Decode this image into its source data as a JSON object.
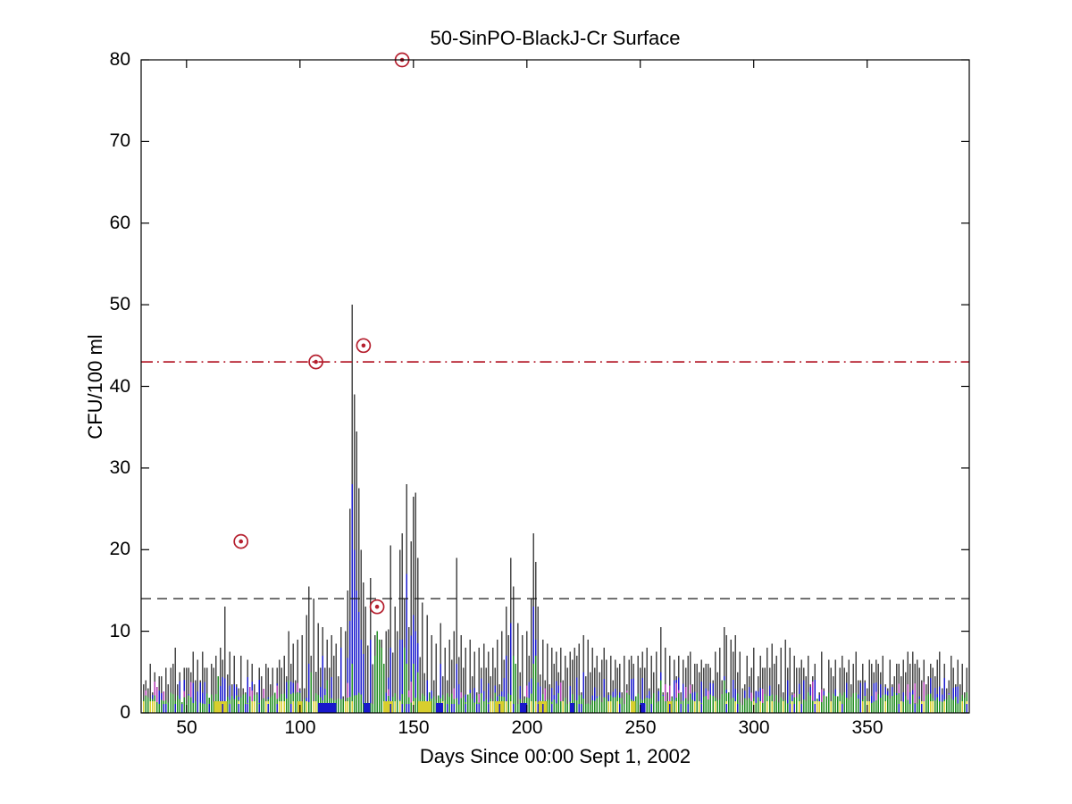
{
  "figure": {
    "title": "50-SinPO-BlackJ-Cr Surface",
    "xlabel": "Days Since 00:00 Sept 1, 2002",
    "ylabel": "CFU/100 ml"
  },
  "chart_data": {
    "type": "bar",
    "title": "50-SinPO-BlackJ-Cr Surface",
    "xlabel": "Days Since 00:00 Sept 1, 2002",
    "ylabel": "CFU/100 ml",
    "xlim": [
      30,
      395
    ],
    "ylim": [
      0,
      80
    ],
    "xticks": [
      50,
      100,
      150,
      200,
      250,
      300,
      350
    ],
    "yticks": [
      0,
      10,
      20,
      30,
      40,
      50,
      60,
      70,
      80
    ],
    "grid": false,
    "legend": "none",
    "bar_width_days": 1,
    "colors": {
      "total_bar": "#474747",
      "blue_bar": "#1818cc",
      "green_bar": "#1f8c1f",
      "yellow_bar": "#d8ce2e",
      "magenta_bar": "#b438b4",
      "outlier": "#b51f2e",
      "threshold_upper": "#b51f2e",
      "threshold_lower": "#1a1a1a",
      "axis": "#000000"
    },
    "thresholds": [
      {
        "name": "upper-limit",
        "value": 43,
        "style": "dash-dot",
        "color": "#b51f2e"
      },
      {
        "name": "lower-limit",
        "value": 14,
        "style": "dashed",
        "color": "#1a1a1a"
      }
    ],
    "outlier_points": {
      "marker": "circle-dot",
      "color": "#b51f2e",
      "points": [
        [
          74,
          21
        ],
        [
          107,
          43
        ],
        [
          128,
          45
        ],
        [
          134,
          13
        ],
        [
          145,
          80
        ]
      ]
    },
    "baseline": {
      "mean": 3.4,
      "min": 2.0,
      "max": 5.2,
      "green_band_mean": 1.8,
      "description": "dense ~daily bars; dark gray total with blue/green/yellow/magenta sub-bars near bottom"
    },
    "noise_seed": 7,
    "series": [
      {
        "name": "total",
        "color": "#474747",
        "peaks": [
          [
            36,
            5
          ],
          [
            38,
            4.5
          ],
          [
            41,
            5.5
          ],
          [
            44,
            6
          ],
          [
            47,
            5
          ],
          [
            49,
            5.5
          ],
          [
            52,
            5
          ],
          [
            55,
            6.5
          ],
          [
            58,
            5.5
          ],
          [
            61,
            6
          ],
          [
            63,
            7
          ],
          [
            65,
            8
          ],
          [
            67,
            13
          ],
          [
            69,
            7.5
          ],
          [
            71,
            7
          ],
          [
            74,
            7
          ],
          [
            77,
            6.5
          ],
          [
            79,
            6
          ],
          [
            82,
            5.5
          ],
          [
            85,
            6
          ],
          [
            88,
            5.5
          ],
          [
            91,
            6.5
          ],
          [
            93,
            7
          ],
          [
            95,
            10
          ],
          [
            97,
            8.5
          ],
          [
            99,
            9
          ],
          [
            101,
            9.5
          ],
          [
            103,
            12
          ],
          [
            104,
            15.5
          ],
          [
            106,
            14
          ],
          [
            108,
            11
          ],
          [
            110,
            10.5
          ],
          [
            112,
            9
          ],
          [
            114,
            9.5
          ],
          [
            116,
            8.5
          ],
          [
            118,
            10.5
          ],
          [
            120,
            10
          ],
          [
            122,
            12
          ],
          [
            123,
            50
          ],
          [
            124,
            39
          ],
          [
            125,
            34.5
          ],
          [
            126,
            27.5
          ],
          [
            127,
            20
          ],
          [
            128,
            16
          ],
          [
            129,
            13
          ],
          [
            131,
            16.5
          ],
          [
            133,
            9.5
          ],
          [
            134,
            10
          ],
          [
            136,
            9
          ],
          [
            138,
            10
          ],
          [
            140,
            20.5
          ],
          [
            142,
            13
          ],
          [
            144,
            20
          ],
          [
            145,
            22
          ],
          [
            147,
            28
          ],
          [
            149,
            21
          ],
          [
            150,
            26.5
          ],
          [
            151,
            27
          ],
          [
            152,
            19
          ],
          [
            154,
            13.5
          ],
          [
            156,
            12
          ],
          [
            158,
            9.5
          ],
          [
            160,
            8.5
          ],
          [
            162,
            11
          ],
          [
            164,
            8
          ],
          [
            166,
            9
          ],
          [
            168,
            10
          ],
          [
            169,
            19
          ],
          [
            171,
            9.5
          ],
          [
            173,
            8
          ],
          [
            175,
            9
          ],
          [
            177,
            7.5
          ],
          [
            179,
            8
          ],
          [
            181,
            8.5
          ],
          [
            183,
            7.5
          ],
          [
            185,
            8
          ],
          [
            187,
            9
          ],
          [
            189,
            10
          ],
          [
            191,
            13
          ],
          [
            193,
            19
          ],
          [
            194,
            15.5
          ],
          [
            196,
            11
          ],
          [
            198,
            9.5
          ],
          [
            200,
            10
          ],
          [
            202,
            14
          ],
          [
            203,
            22
          ],
          [
            204,
            18.5
          ],
          [
            205,
            13
          ],
          [
            207,
            9
          ],
          [
            209,
            8.5
          ],
          [
            211,
            8
          ],
          [
            213,
            7.5
          ],
          [
            215,
            8
          ],
          [
            217,
            7
          ],
          [
            219,
            7.5
          ],
          [
            221,
            8
          ],
          [
            223,
            8.5
          ],
          [
            225,
            9.5
          ],
          [
            227,
            9
          ],
          [
            229,
            8
          ],
          [
            231,
            7
          ],
          [
            233,
            6.5
          ],
          [
            235,
            6.5
          ],
          [
            237,
            7
          ],
          [
            239,
            6.5
          ],
          [
            241,
            6
          ],
          [
            243,
            7
          ],
          [
            245,
            6.5
          ],
          [
            247,
            6
          ],
          [
            249,
            7
          ],
          [
            251,
            7.5
          ],
          [
            253,
            8
          ],
          [
            255,
            7
          ],
          [
            257,
            7.5
          ],
          [
            259,
            10.5
          ],
          [
            261,
            8
          ],
          [
            263,
            7
          ],
          [
            265,
            6.5
          ],
          [
            267,
            7
          ],
          [
            269,
            6.5
          ],
          [
            271,
            7
          ],
          [
            274,
            6
          ],
          [
            277,
            6.5
          ],
          [
            280,
            6
          ],
          [
            283,
            7.5
          ],
          [
            285,
            8
          ],
          [
            287,
            10.5
          ],
          [
            288,
            9.5
          ],
          [
            290,
            9
          ],
          [
            292,
            9.5
          ],
          [
            294,
            7.5
          ],
          [
            297,
            7
          ],
          [
            300,
            8
          ],
          [
            303,
            7
          ],
          [
            306,
            8
          ],
          [
            308,
            8.5
          ],
          [
            310,
            7
          ],
          [
            312,
            8
          ],
          [
            314,
            9
          ],
          [
            316,
            8
          ],
          [
            318,
            7
          ],
          [
            321,
            6.5
          ],
          [
            324,
            7
          ],
          [
            327,
            6
          ],
          [
            330,
            7.5
          ],
          [
            333,
            6.5
          ],
          [
            336,
            6.5
          ],
          [
            339,
            7
          ],
          [
            342,
            6.5
          ],
          [
            345,
            7.5
          ],
          [
            348,
            6
          ],
          [
            351,
            6.5
          ],
          [
            354,
            6.5
          ],
          [
            357,
            7
          ],
          [
            360,
            6.5
          ],
          [
            363,
            6
          ],
          [
            366,
            6.5
          ],
          [
            369,
            6
          ],
          [
            372,
            6.5
          ],
          [
            375,
            6.5
          ],
          [
            378,
            6
          ],
          [
            381,
            6.5
          ],
          [
            384,
            6
          ],
          [
            387,
            7
          ],
          [
            390,
            6.5
          ],
          [
            392,
            6
          ],
          [
            394,
            5.5
          ]
        ]
      },
      {
        "name": "blue",
        "color": "#1818cc",
        "peaks": [
          [
            104,
            6
          ],
          [
            110,
            7
          ],
          [
            118,
            8
          ],
          [
            123,
            28
          ],
          [
            124,
            20
          ],
          [
            125,
            15
          ],
          [
            131,
            9
          ],
          [
            140,
            8
          ],
          [
            145,
            9
          ],
          [
            147,
            17
          ],
          [
            150,
            12
          ],
          [
            151,
            10
          ],
          [
            162,
            6
          ],
          [
            169,
            6
          ],
          [
            191,
            7
          ],
          [
            193,
            11
          ],
          [
            203,
            13
          ],
          [
            204,
            9
          ],
          [
            225,
            5
          ],
          [
            259,
            5
          ],
          [
            287,
            4.5
          ],
          [
            315,
            4
          ]
        ]
      },
      {
        "name": "green",
        "color": "#1f8c1f",
        "peaks": [
          [
            64,
            4.5
          ],
          [
            95,
            4
          ],
          [
            105,
            5
          ],
          [
            112,
            4
          ],
          [
            123,
            6
          ],
          [
            133,
            7
          ],
          [
            134,
            10
          ],
          [
            135,
            9
          ],
          [
            136,
            8
          ],
          [
            137,
            6
          ],
          [
            146,
            8
          ],
          [
            147,
            6
          ],
          [
            150,
            6
          ],
          [
            152,
            5
          ],
          [
            194,
            7
          ],
          [
            195,
            6
          ],
          [
            203,
            6
          ],
          [
            204,
            7
          ],
          [
            259,
            4
          ],
          [
            287,
            4
          ]
        ]
      }
    ],
    "bottom_blocks": {
      "yellow": [
        [
          62,
          68
        ],
        [
          99,
          101
        ],
        [
          137,
          141
        ],
        [
          152,
          158
        ],
        [
          186,
          190
        ],
        [
          205,
          209
        ],
        [
          246,
          248
        ],
        [
          262,
          264
        ]
      ],
      "blue": [
        [
          108,
          116
        ],
        [
          128,
          131
        ],
        [
          160,
          163
        ],
        [
          197,
          200
        ],
        [
          219,
          221
        ],
        [
          250,
          252
        ]
      ]
    }
  }
}
